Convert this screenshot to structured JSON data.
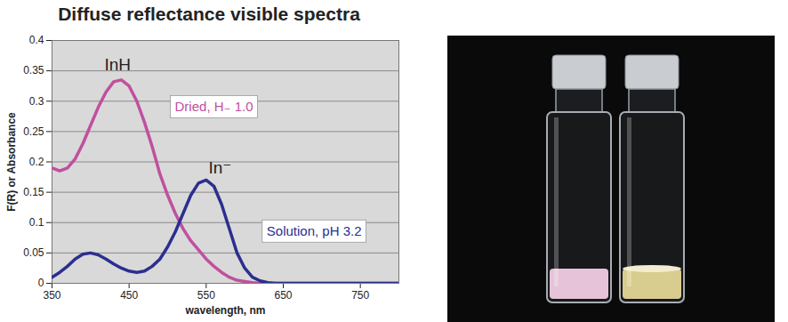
{
  "chart_data": {
    "type": "line",
    "title": "Diffuse reflectance visible spectra",
    "x_label": "wavelength, nm",
    "y_label": "F(R) or Absorbance",
    "x": [
      350,
      360,
      370,
      380,
      390,
      400,
      410,
      420,
      430,
      440,
      450,
      460,
      470,
      480,
      490,
      500,
      510,
      520,
      530,
      540,
      550,
      560,
      570,
      580,
      590,
      600,
      610,
      620,
      630,
      640,
      650,
      660,
      670,
      680,
      690,
      700,
      710,
      720,
      730,
      740,
      750,
      760,
      770,
      780,
      790,
      800
    ],
    "series": [
      {
        "name": "Dried, H₋ 1.0",
        "color": "#c0509f",
        "label_x": 560,
        "label_y": 0.29,
        "values": [
          0.19,
          0.185,
          0.19,
          0.205,
          0.23,
          0.26,
          0.29,
          0.315,
          0.332,
          0.335,
          0.325,
          0.3,
          0.265,
          0.225,
          0.18,
          0.145,
          0.115,
          0.09,
          0.07,
          0.055,
          0.04,
          0.028,
          0.018,
          0.01,
          0.005,
          0.003,
          0.001,
          0,
          0,
          0,
          0,
          0,
          0,
          0,
          0,
          0,
          0,
          0,
          0,
          0,
          0,
          0,
          0,
          0,
          0,
          0
        ]
      },
      {
        "name": "Solution, pH 3.2",
        "color": "#2b2f8f",
        "label_x": 690,
        "label_y": 0.085,
        "values": [
          0.01,
          0.018,
          0.028,
          0.04,
          0.048,
          0.05,
          0.047,
          0.04,
          0.032,
          0.025,
          0.02,
          0.018,
          0.02,
          0.028,
          0.04,
          0.06,
          0.085,
          0.115,
          0.145,
          0.165,
          0.17,
          0.16,
          0.13,
          0.09,
          0.05,
          0.025,
          0.01,
          0.004,
          0.001,
          0,
          0,
          0,
          0,
          0,
          0,
          0,
          0,
          0,
          0,
          0,
          0,
          0,
          0,
          0,
          0,
          0
        ]
      }
    ],
    "annotations": [
      {
        "text": "InH",
        "x": 435,
        "y": 0.36
      },
      {
        "text": "In⁻",
        "x": 568,
        "y": 0.19
      }
    ],
    "xlim": [
      350,
      800
    ],
    "xticks": [
      350,
      450,
      550,
      650,
      750
    ],
    "ylim": [
      0,
      0.4
    ],
    "yticks": [
      0,
      0.05,
      0.1,
      0.15,
      0.2,
      0.25,
      0.3,
      0.35,
      0.4
    ],
    "grid": true
  }
}
